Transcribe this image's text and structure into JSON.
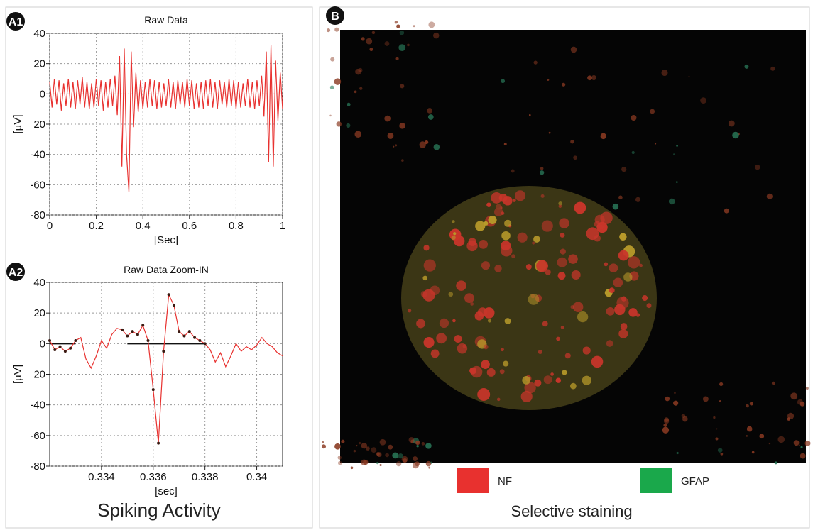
{
  "chart_data": [
    {
      "type": "line",
      "title": "Raw Data",
      "x_label": "[Sec]",
      "y_label": "[µV]",
      "xlim": [
        0,
        1
      ],
      "xticks": [
        0,
        0.2,
        0.4,
        0.6,
        0.8,
        1
      ],
      "ylim": [
        -80,
        40
      ],
      "yticks": [
        40,
        20,
        0,
        {
          "value": -20,
          "label": "20"
        },
        -40,
        -60,
        -80
      ],
      "grid": true,
      "x": [
        0,
        0.01,
        0.02,
        0.03,
        0.04,
        0.05,
        0.06,
        0.07,
        0.08,
        0.09,
        0.1,
        0.11,
        0.12,
        0.13,
        0.14,
        0.15,
        0.16,
        0.17,
        0.18,
        0.19,
        0.2,
        0.21,
        0.22,
        0.23,
        0.24,
        0.25,
        0.26,
        0.27,
        0.28,
        0.29,
        0.3,
        0.31,
        0.32,
        0.33,
        0.34,
        0.35,
        0.36,
        0.37,
        0.38,
        0.39,
        0.4,
        0.41,
        0.42,
        0.43,
        0.44,
        0.45,
        0.46,
        0.47,
        0.48,
        0.49,
        0.5,
        0.51,
        0.52,
        0.53,
        0.54,
        0.55,
        0.56,
        0.57,
        0.58,
        0.59,
        0.6,
        0.61,
        0.62,
        0.63,
        0.64,
        0.65,
        0.66,
        0.67,
        0.68,
        0.69,
        0.7,
        0.71,
        0.72,
        0.73,
        0.74,
        0.75,
        0.76,
        0.77,
        0.78,
        0.79,
        0.8,
        0.81,
        0.82,
        0.83,
        0.84,
        0.85,
        0.86,
        0.87,
        0.88,
        0.89,
        0.9,
        0.91,
        0.92,
        0.93,
        0.94,
        0.95,
        0.96,
        0.97,
        0.98,
        0.99,
        1
      ],
      "series": [
        {
          "color": "#e8312f",
          "style": "line",
          "values": [
            8,
            -9,
            10,
            -7,
            9,
            -11,
            7,
            -8,
            10,
            -9,
            8,
            -10,
            9,
            -7,
            11,
            -9,
            8,
            -10,
            7,
            -9,
            10,
            -8,
            9,
            -11,
            8,
            -9,
            10,
            -8,
            12,
            -14,
            25,
            -48,
            30,
            -40,
            -65,
            28,
            -22,
            14,
            -12,
            9,
            -10,
            8,
            -9,
            10,
            -8,
            9,
            -10,
            8,
            -9,
            7,
            -8,
            10,
            -9,
            8,
            -10,
            9,
            -7,
            8,
            -9,
            10,
            -8,
            9,
            -10,
            7,
            -9,
            8,
            -10,
            9,
            -8,
            10,
            -9,
            8,
            -10,
            9,
            -7,
            8,
            -9,
            10,
            -8,
            9,
            -10,
            8,
            -9,
            7,
            -8,
            10,
            -9,
            8,
            -10,
            9,
            -8,
            12,
            -15,
            28,
            -45,
            32,
            -48,
            22,
            -18,
            14,
            -10
          ]
        }
      ]
    },
    {
      "type": "line",
      "title": "Raw Data Zoom-IN",
      "x_label": "[sec]",
      "y_label": "[µV]",
      "xlim": [
        0.332,
        0.341
      ],
      "xticks": [
        0.334,
        0.336,
        0.338,
        0.34
      ],
      "ylim": [
        -80,
        40
      ],
      "yticks": [
        40,
        20,
        0,
        {
          "value": -20,
          "label": "20"
        },
        -40,
        -60,
        -80
      ],
      "grid": true,
      "x": [
        0.332,
        0.3322,
        0.3324,
        0.3326,
        0.3328,
        0.333,
        0.3332,
        0.3334,
        0.3336,
        0.3338,
        0.334,
        0.3342,
        0.3344,
        0.3346,
        0.3348,
        0.335,
        0.3352,
        0.3354,
        0.3356,
        0.3358,
        0.336,
        0.3362,
        0.3364,
        0.3366,
        0.3368,
        0.337,
        0.3372,
        0.3374,
        0.3376,
        0.3378,
        0.338,
        0.3382,
        0.3384,
        0.3386,
        0.3388,
        0.339,
        0.3392,
        0.3394,
        0.3396,
        0.3398,
        0.34,
        0.3402,
        0.3404,
        0.3406,
        0.3408,
        0.341
      ],
      "series": [
        {
          "color": "#e8312f",
          "style": "line",
          "values": [
            2,
            -4,
            -2,
            -5,
            -3,
            2,
            4,
            -10,
            -16,
            -8,
            2,
            -3,
            6,
            10,
            9,
            5,
            8,
            6,
            12,
            2,
            -30,
            -65,
            -5,
            32,
            25,
            8,
            5,
            8,
            4,
            2,
            0,
            -4,
            -12,
            -6,
            -15,
            -8,
            0,
            -5,
            -2,
            -4,
            -1,
            4,
            0,
            -2,
            -6,
            -8
          ]
        },
        {
          "color": "#3a1a12",
          "style": "markers",
          "values": [
            2,
            -4,
            -2,
            -5,
            -3,
            2,
            null,
            null,
            null,
            null,
            null,
            null,
            null,
            null,
            9,
            5,
            8,
            6,
            12,
            2,
            -30,
            -65,
            -5,
            32,
            25,
            8,
            5,
            8,
            4,
            2,
            0,
            null,
            null,
            null,
            null,
            null,
            null,
            null,
            null,
            null,
            null,
            null,
            null,
            null,
            null,
            null
          ]
        }
      ],
      "baselines": [
        {
          "x": [
            0.332,
            0.333
          ],
          "y": 0
        },
        {
          "x": [
            0.335,
            0.338
          ],
          "y": 0
        }
      ]
    }
  ],
  "panel_labels": [
    "A1",
    "A2",
    "B"
  ],
  "captions": {
    "left": "Spiking  Activity",
    "right": "Selective staining"
  },
  "legend": [
    {
      "name": "NF",
      "color": "#e8312f"
    },
    {
      "name": "GFAP",
      "color": "#1aa84b"
    }
  ]
}
